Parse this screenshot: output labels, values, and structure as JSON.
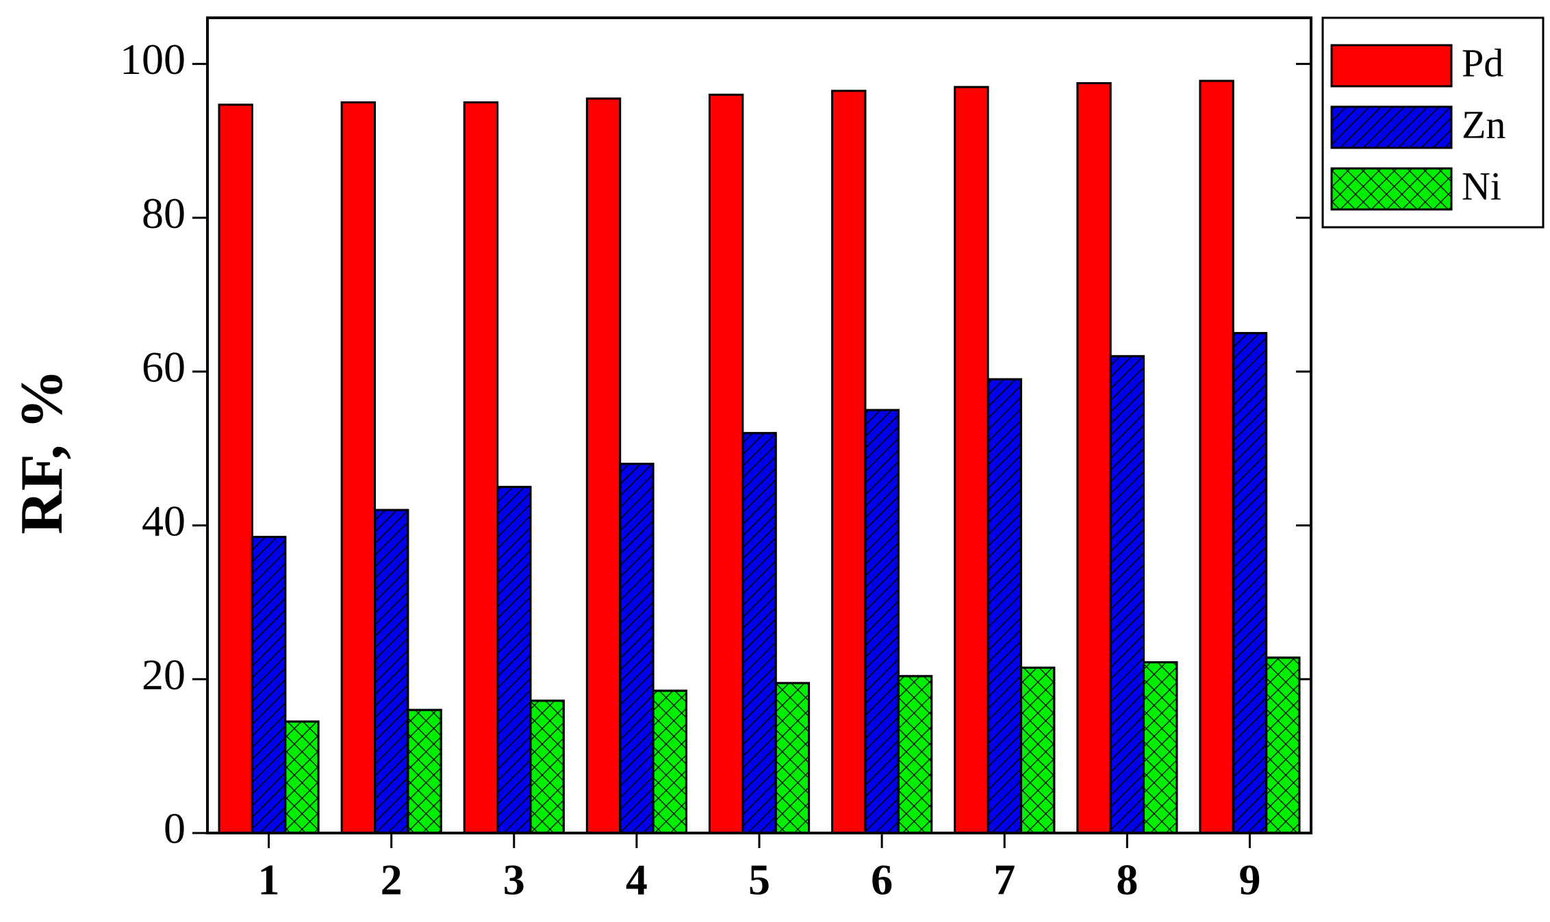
{
  "chart_data": {
    "type": "bar",
    "ylabel": "RF, %",
    "categories": [
      "1",
      "2",
      "3",
      "4",
      "5",
      "6",
      "7",
      "8",
      "9"
    ],
    "series": [
      {
        "name": "Pd",
        "color": "#ff0000",
        "values": [
          94.7,
          95,
          95,
          95.5,
          96,
          96.5,
          97,
          97.5,
          97.8
        ]
      },
      {
        "name": "Zn",
        "color": "#0000ee",
        "values": [
          38.5,
          42,
          45,
          48,
          52,
          55,
          59,
          62,
          65
        ]
      },
      {
        "name": "Ni",
        "color": "#00ee00",
        "values": [
          14.5,
          16,
          17.2,
          18.5,
          19.5,
          20.4,
          21.5,
          22.2,
          22.8
        ]
      }
    ],
    "ylim": [
      0,
      106
    ],
    "yticks": [
      0,
      20,
      40,
      60,
      80,
      100
    ],
    "legend": "outside-right"
  }
}
